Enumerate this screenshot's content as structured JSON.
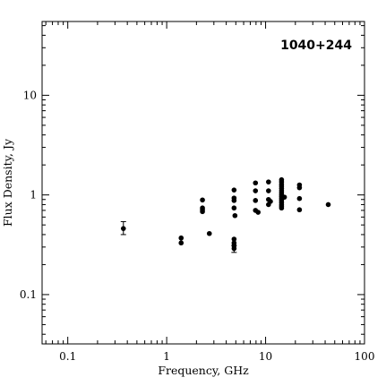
{
  "chart_data": {
    "type": "scatter",
    "annotation": "1040+244",
    "xlabel": "Frequency, GHz",
    "ylabel": "Flux Density, Jy",
    "xscale": "log",
    "yscale": "log",
    "xlim": [
      0.055,
      100
    ],
    "ylim": [
      0.032,
      55
    ],
    "x_tick_labels": [
      {
        "value": 0.1,
        "label": "0.1"
      },
      {
        "value": 1,
        "label": "1"
      },
      {
        "value": 10,
        "label": "10"
      },
      {
        "value": 100,
        "label": "100"
      }
    ],
    "y_tick_labels": [
      {
        "value": 0.1,
        "label": "0.1"
      },
      {
        "value": 1,
        "label": "1"
      },
      {
        "value": 10,
        "label": "10"
      }
    ],
    "points": [
      {
        "x": 0.365,
        "y": 0.46,
        "yerr_low": 0.4,
        "yerr_high": 0.54
      },
      {
        "x": 1.4,
        "y": 0.37
      },
      {
        "x": 1.4,
        "y": 0.33
      },
      {
        "x": 2.3,
        "y": 0.89
      },
      {
        "x": 2.3,
        "y": 0.74
      },
      {
        "x": 2.3,
        "y": 0.71
      },
      {
        "x": 2.3,
        "y": 0.68
      },
      {
        "x": 2.7,
        "y": 0.41
      },
      {
        "x": 4.8,
        "y": 1.12
      },
      {
        "x": 4.8,
        "y": 0.93
      },
      {
        "x": 4.8,
        "y": 0.88
      },
      {
        "x": 4.8,
        "y": 0.74
      },
      {
        "x": 4.9,
        "y": 0.62
      },
      {
        "x": 4.8,
        "y": 0.36
      },
      {
        "x": 4.8,
        "y": 0.33
      },
      {
        "x": 4.8,
        "y": 0.31
      },
      {
        "x": 4.8,
        "y": 0.29,
        "yerr_low": 0.265,
        "yerr_high": 0.31
      },
      {
        "x": 7.9,
        "y": 1.32
      },
      {
        "x": 7.9,
        "y": 1.1
      },
      {
        "x": 7.9,
        "y": 0.88
      },
      {
        "x": 7.9,
        "y": 0.7
      },
      {
        "x": 8.4,
        "y": 0.67
      },
      {
        "x": 10.7,
        "y": 1.35
      },
      {
        "x": 10.7,
        "y": 1.1
      },
      {
        "x": 10.7,
        "y": 0.9
      },
      {
        "x": 11.2,
        "y": 0.86
      },
      {
        "x": 10.7,
        "y": 0.8
      },
      {
        "x": 14.5,
        "y": 1.42
      },
      {
        "x": 14.5,
        "y": 1.35
      },
      {
        "x": 14.5,
        "y": 1.28
      },
      {
        "x": 14.5,
        "y": 1.22
      },
      {
        "x": 14.5,
        "y": 1.16
      },
      {
        "x": 14.5,
        "y": 1.1
      },
      {
        "x": 14.5,
        "y": 1.05
      },
      {
        "x": 14.5,
        "y": 1.0
      },
      {
        "x": 14.5,
        "y": 0.96
      },
      {
        "x": 14.5,
        "y": 0.92
      },
      {
        "x": 14.5,
        "y": 0.88
      },
      {
        "x": 14.5,
        "y": 0.84
      },
      {
        "x": 14.5,
        "y": 0.8
      },
      {
        "x": 14.5,
        "y": 0.77
      },
      {
        "x": 14.5,
        "y": 0.74
      },
      {
        "x": 15.5,
        "y": 0.95
      },
      {
        "x": 22,
        "y": 1.26
      },
      {
        "x": 22,
        "y": 1.18
      },
      {
        "x": 22,
        "y": 0.92
      },
      {
        "x": 22,
        "y": 0.71
      },
      {
        "x": 43,
        "y": 0.8
      }
    ]
  }
}
